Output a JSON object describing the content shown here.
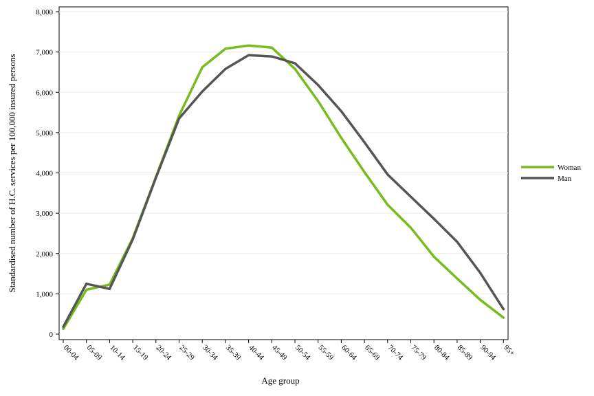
{
  "chart_data": {
    "type": "line",
    "xlabel": "Age group",
    "ylabel": "Standardised number of H.C. services per 100,000 insured persons",
    "ylim": [
      0,
      8000
    ],
    "yticks": [
      0,
      1000,
      2000,
      3000,
      4000,
      5000,
      6000,
      7000,
      8000
    ],
    "ytick_labels": [
      "0",
      "1,000",
      "2,000",
      "3,000",
      "4,000",
      "5,000",
      "6,000",
      "7,000",
      "8,000"
    ],
    "categories": [
      "00-04",
      "05-09",
      "10-14",
      "15-19",
      "20-24",
      "25-29",
      "30-34",
      "35-39",
      "40-44",
      "45-49",
      "50-54",
      "55-59",
      "60-64",
      "65-69",
      "70-74",
      "75-79",
      "80-84",
      "85-89",
      "90-94",
      "95+"
    ],
    "grid": true,
    "legend_position": "right",
    "series": [
      {
        "name": "Woman",
        "color": "#77bc1f",
        "values": [
          130,
          1100,
          1230,
          2380,
          3900,
          5420,
          6620,
          7080,
          7160,
          7110,
          6580,
          5780,
          4870,
          4020,
          3210,
          2640,
          1920,
          1380,
          850,
          410
        ]
      },
      {
        "name": "Man",
        "color": "#555555",
        "values": [
          180,
          1250,
          1120,
          2350,
          3880,
          5350,
          6020,
          6580,
          6920,
          6890,
          6720,
          6180,
          5530,
          4760,
          3960,
          3410,
          2860,
          2290,
          1520,
          620
        ]
      }
    ]
  }
}
